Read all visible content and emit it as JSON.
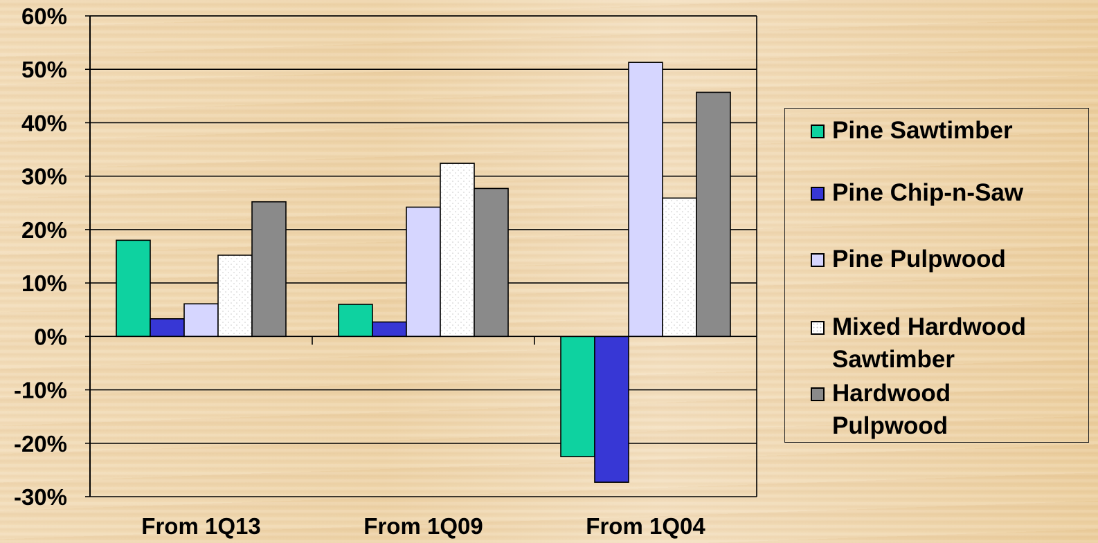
{
  "chart_data": {
    "type": "bar",
    "categories": [
      "From 1Q13",
      "From 1Q09",
      "From 1Q04"
    ],
    "series": [
      {
        "name": "Pine Sawtimber",
        "values": [
          18,
          6,
          -22.5
        ],
        "color": "#0ed2a0",
        "pattern": "solid"
      },
      {
        "name": "Pine Chip-n-Saw",
        "values": [
          3.3,
          2.7,
          -27.3
        ],
        "color": "#3737d5",
        "pattern": "solid"
      },
      {
        "name": "Pine Pulpwood",
        "values": [
          6.1,
          24.2,
          51.3
        ],
        "color": "#d6d6ff",
        "pattern": "solid"
      },
      {
        "name": "Mixed Hardwood\nSawtimber",
        "values": [
          15.2,
          32.4,
          25.9
        ],
        "color": "#ffffff",
        "pattern": "dotted"
      },
      {
        "name": "Hardwood\nPulpwood",
        "values": [
          25.2,
          27.7,
          45.7
        ],
        "color": "#8a8a8a",
        "pattern": "solid"
      }
    ],
    "yticks": [
      "60%",
      "50%",
      "40%",
      "30%",
      "20%",
      "10%",
      "0%",
      "-10%",
      "-20%",
      "-30%"
    ],
    "ylim": [
      -30,
      60
    ],
    "grid": true,
    "legend_position": "right",
    "title": "",
    "xlabel": "",
    "ylabel": ""
  }
}
